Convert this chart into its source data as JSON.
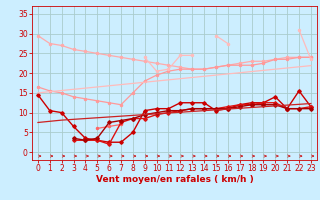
{
  "bg_color": "#cceeff",
  "grid_color": "#aacccc",
  "xlabel": "Vent moyen/en rafales ( km/h )",
  "xlabel_color": "#cc0000",
  "xlabel_fontsize": 6.5,
  "tick_color": "#cc0000",
  "tick_fontsize": 5.5,
  "x_ticks": [
    0,
    1,
    2,
    3,
    4,
    5,
    6,
    7,
    8,
    9,
    10,
    11,
    12,
    13,
    14,
    15,
    16,
    17,
    18,
    19,
    20,
    21,
    22,
    23
  ],
  "ylim": [
    -2,
    37
  ],
  "xlim": [
    -0.5,
    23.5
  ],
  "y_ticks": [
    0,
    5,
    10,
    15,
    20,
    25,
    30,
    35
  ],
  "series": [
    {
      "color": "#ffaaaa",
      "lw": 0.9,
      "marker": "o",
      "markersize": 1.5,
      "y": [
        29.5,
        27.5,
        27.0,
        26.0,
        25.5,
        25.0,
        24.5,
        24.0,
        23.5,
        23.0,
        22.5,
        22.0,
        21.5,
        21.0,
        21.0,
        21.5,
        22.0,
        22.5,
        23.0,
        23.0,
        23.5,
        24.0,
        24.0,
        24.0
      ]
    },
    {
      "color": "#ff9999",
      "lw": 0.9,
      "marker": "o",
      "markersize": 1.5,
      "y": [
        16.5,
        15.5,
        15.0,
        14.0,
        13.5,
        13.0,
        12.5,
        12.0,
        15.0,
        18.0,
        19.5,
        20.5,
        21.0,
        21.0,
        21.0,
        21.5,
        22.0,
        22.0,
        22.0,
        22.5,
        23.5,
        23.5,
        24.0,
        24.0
      ]
    },
    {
      "color": "#ffbbbb",
      "lw": 0.9,
      "marker": "o",
      "markersize": 1.5,
      "y": [
        null,
        null,
        null,
        null,
        null,
        null,
        null,
        null,
        null,
        24.0,
        20.5,
        21.0,
        24.5,
        24.5,
        null,
        29.5,
        27.5,
        null,
        null,
        null,
        null,
        null,
        31.0,
        23.5
      ]
    },
    {
      "color": "#ff6666",
      "lw": 0.9,
      "marker": "o",
      "markersize": 1.5,
      "y": [
        null,
        null,
        null,
        null,
        null,
        6.0,
        6.5,
        7.0,
        null,
        null,
        null,
        null,
        null,
        null,
        null,
        null,
        null,
        null,
        null,
        null,
        null,
        null,
        null,
        null
      ]
    },
    {
      "color": "#cc0000",
      "lw": 1.0,
      "marker": "D",
      "markersize": 1.8,
      "y": [
        14.5,
        10.5,
        10.0,
        6.5,
        3.5,
        3.0,
        2.5,
        2.5,
        5.0,
        10.5,
        11.0,
        11.0,
        12.5,
        12.5,
        12.5,
        10.5,
        11.0,
        12.0,
        12.5,
        12.5,
        14.0,
        11.0,
        15.5,
        11.5
      ]
    },
    {
      "color": "#dd1111",
      "lw": 1.0,
      "marker": "D",
      "markersize": 1.8,
      "y": [
        null,
        null,
        null,
        3.0,
        3.0,
        3.0,
        2.0,
        7.5,
        8.5,
        8.5,
        9.5,
        10.0,
        10.5,
        11.0,
        11.0,
        11.0,
        11.5,
        12.0,
        12.0,
        12.5,
        12.5,
        11.0,
        11.0,
        11.5
      ]
    },
    {
      "color": "#aa0000",
      "lw": 1.0,
      "marker": "D",
      "markersize": 1.8,
      "y": [
        null,
        null,
        null,
        3.5,
        3.0,
        3.5,
        7.5,
        8.0,
        8.5,
        9.5,
        10.0,
        10.5,
        10.5,
        11.0,
        11.0,
        11.0,
        11.0,
        11.5,
        12.0,
        12.0,
        12.0,
        11.0,
        11.0,
        11.0
      ]
    },
    {
      "color": "#cc2222",
      "lw": 0.9,
      "marker": null,
      "markersize": 0,
      "y": [
        7.5,
        7.8,
        8.1,
        8.3,
        8.5,
        8.7,
        8.9,
        9.1,
        9.3,
        9.5,
        9.7,
        9.9,
        10.1,
        10.3,
        10.5,
        10.7,
        10.9,
        11.1,
        11.3,
        11.5,
        11.7,
        11.9,
        12.1,
        12.3
      ]
    },
    {
      "color": "#ffbbbb",
      "lw": 0.9,
      "marker": null,
      "markersize": 0,
      "y": [
        15.0,
        15.3,
        15.6,
        15.9,
        16.2,
        16.5,
        16.8,
        17.1,
        17.4,
        17.7,
        18.0,
        18.3,
        18.6,
        18.9,
        19.2,
        19.5,
        19.8,
        20.1,
        20.4,
        20.7,
        21.0,
        21.3,
        21.6,
        21.9
      ]
    }
  ]
}
